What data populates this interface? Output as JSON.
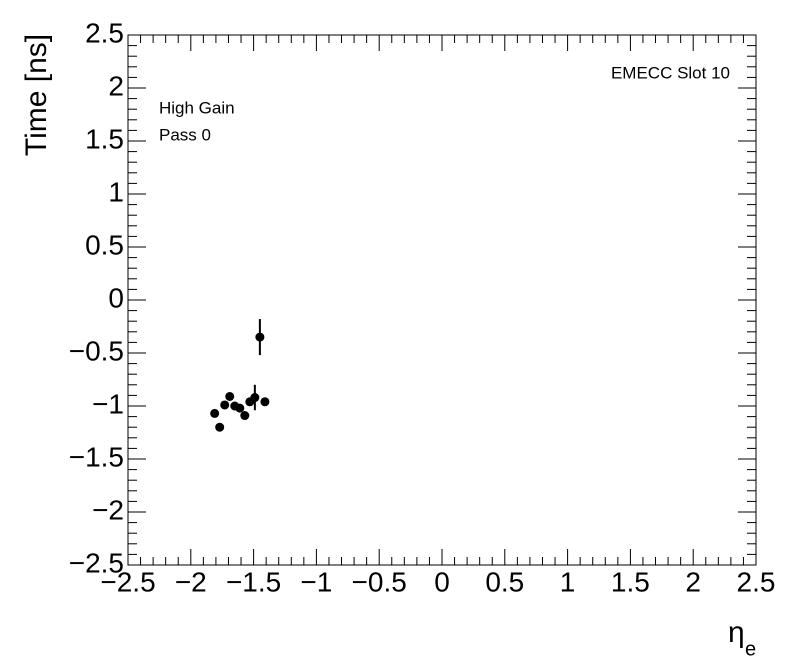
{
  "chart_data": {
    "type": "scatter",
    "annotations": [
      "EMECC Slot 10",
      "High Gain",
      "Pass 0"
    ],
    "y_label": "Time [ns]",
    "x_label": "η",
    "x_label_subscript": "e",
    "color": "#000000",
    "x": [
      -1.81,
      -1.77,
      -1.73,
      -1.69,
      -1.65,
      -1.61,
      -1.57,
      -1.53,
      -1.49,
      -1.45,
      -1.41
    ],
    "values": [
      -1.07,
      -1.2,
      -0.99,
      -0.91,
      -1.0,
      -1.02,
      -1.09,
      -0.96,
      -0.92,
      -0.35,
      -0.96
    ],
    "errors": [
      0.03,
      0.03,
      0.03,
      0.03,
      0.03,
      0.03,
      0.03,
      0.03,
      0.12,
      0.17,
      0.03
    ],
    "xlim": [
      -2.5,
      2.5
    ],
    "xticks": [
      {
        "value": -2.5,
        "label": "−2.5"
      },
      {
        "value": -2,
        "label": "−2"
      },
      {
        "value": -1.5,
        "label": "−1.5"
      },
      {
        "value": -1,
        "label": "−1"
      },
      {
        "value": -0.5,
        "label": "−0.5"
      },
      0,
      0.5,
      1,
      1.5,
      2,
      2.5
    ],
    "ylim": [
      -2.5,
      2.5
    ],
    "yticks": [
      {
        "value": -2.5,
        "label": "−2.5"
      },
      {
        "value": -2,
        "label": "−2"
      },
      {
        "value": -1.5,
        "label": "−1.5"
      },
      {
        "value": -1,
        "label": "−1"
      },
      {
        "value": -0.5,
        "label": "−0.5"
      },
      0,
      0.5,
      1,
      1.5,
      2,
      2.5
    ]
  }
}
